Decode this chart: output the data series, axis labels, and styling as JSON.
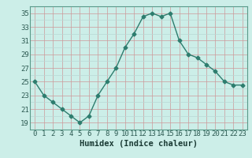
{
  "x": [
    0,
    1,
    2,
    3,
    4,
    5,
    6,
    7,
    8,
    9,
    10,
    11,
    12,
    13,
    14,
    15,
    16,
    17,
    18,
    19,
    20,
    21,
    22,
    23
  ],
  "y": [
    25,
    23,
    22,
    21,
    20,
    19,
    20,
    23,
    25,
    27,
    30,
    32,
    34.5,
    35,
    34.5,
    35,
    31,
    29,
    28.5,
    27.5,
    26.5,
    25,
    24.5,
    24.5
  ],
  "xlabel": "Humidex (Indice chaleur)",
  "ylim": [
    18,
    36
  ],
  "xlim": [
    -0.5,
    23.5
  ],
  "yticks": [
    19,
    21,
    23,
    25,
    27,
    29,
    31,
    33,
    35
  ],
  "line_color": "#2d7d6e",
  "marker": "D",
  "marker_size": 2.5,
  "bg_color": "#cceee8",
  "grid_color": "#b8d8d4",
  "grid_red_color": "#cc9999",
  "xlabel_fontsize": 7.5,
  "tick_fontsize": 6.5
}
